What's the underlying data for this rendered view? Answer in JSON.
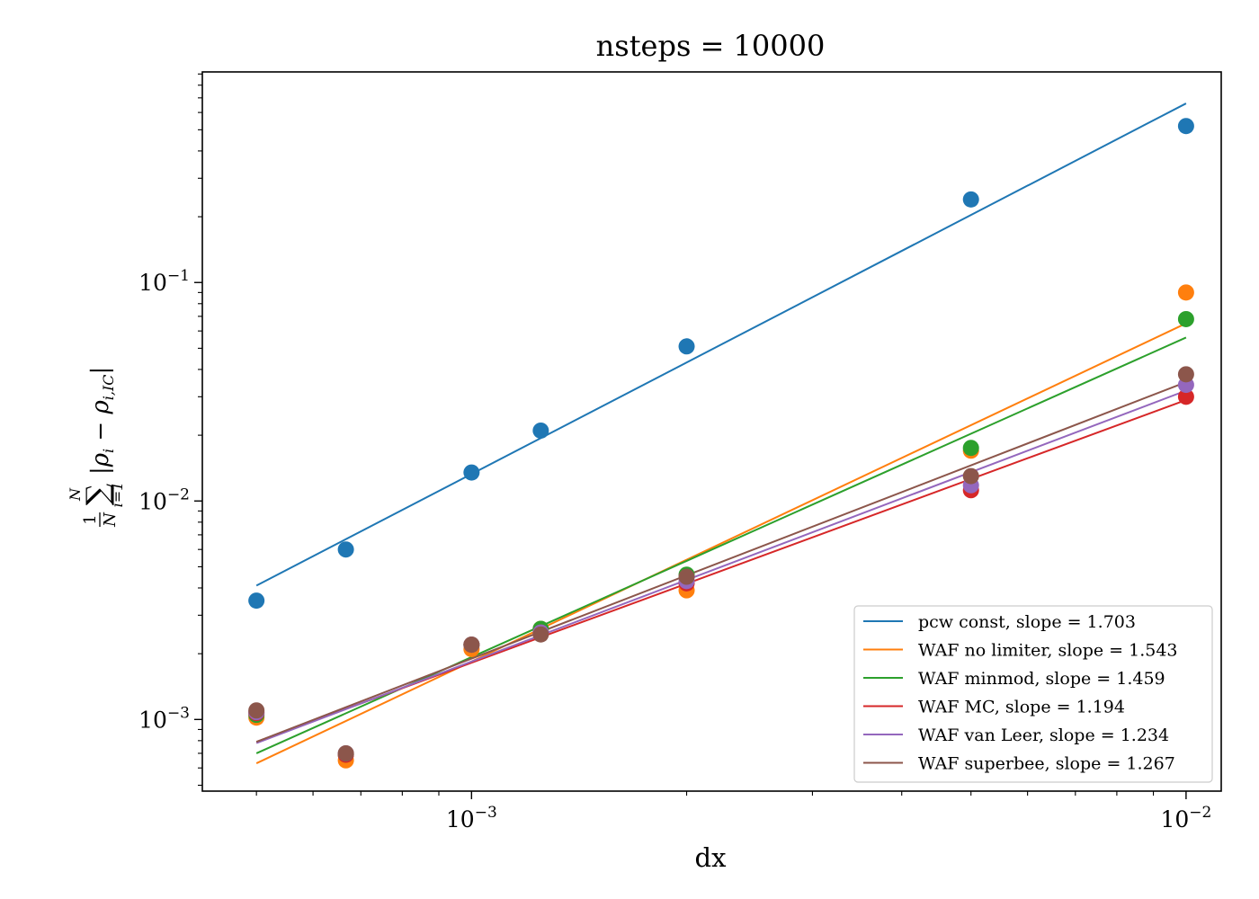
{
  "chart_data": {
    "type": "scatter",
    "title": "nsteps = 10000",
    "xlabel": "dx",
    "ylabel": {
      "frac_num": "1",
      "frac_den": "N",
      "sum_upper": "N",
      "sum_lower": "i=1",
      "body": "|ρ",
      "body_sub": "i",
      "minus": " − ρ",
      "minus_sub": "i,IC",
      "close": "|"
    },
    "xscale": "log",
    "yscale": "log",
    "xlim": [
      0.00042,
      0.0112
    ],
    "ylim": [
      0.00047,
      0.92
    ],
    "x_ticks": [
      {
        "value": 0.001,
        "base": "10",
        "exp": "−3"
      },
      {
        "value": 0.01,
        "base": "10",
        "exp": "−2"
      }
    ],
    "y_ticks": [
      {
        "value": 0.001,
        "base": "10",
        "exp": "−3"
      },
      {
        "value": 0.01,
        "base": "10",
        "exp": "−2"
      },
      {
        "value": 0.1,
        "base": "10",
        "exp": "−1"
      }
    ],
    "x": [
      0.0005,
      0.000667,
      0.001,
      0.00125,
      0.002,
      0.005,
      0.01
    ],
    "legend_position": "lower right",
    "series": [
      {
        "name": "pcw const, slope = 1.703",
        "color": "#1f77b4",
        "points": [
          0.0035,
          0.006,
          0.0135,
          0.021,
          0.051,
          0.24,
          0.52
        ],
        "fit": [
          0.0041,
          0.66
        ]
      },
      {
        "name": "WAF no limiter, slope = 1.543",
        "color": "#ff7f0e",
        "points": [
          0.00102,
          0.00065,
          0.0021,
          0.0026,
          0.0039,
          0.017,
          0.09
        ],
        "fit": [
          0.00063,
          0.065
        ]
      },
      {
        "name": "WAF minmod, slope = 1.459",
        "color": "#2ca02c",
        "points": [
          0.00105,
          0.00069,
          0.0022,
          0.0026,
          0.0046,
          0.0175,
          0.068
        ],
        "fit": [
          0.0007,
          0.056
        ]
      },
      {
        "name": "WAF MC, slope = 1.194",
        "color": "#d62728",
        "points": [
          0.00107,
          0.00069,
          0.0022,
          0.0025,
          0.0042,
          0.0112,
          0.03
        ],
        "fit": [
          0.00079,
          0.029
        ]
      },
      {
        "name": "WAF van Leer, slope = 1.234",
        "color": "#9467bd",
        "points": [
          0.00108,
          0.0007,
          0.0022,
          0.0025,
          0.0043,
          0.0118,
          0.034
        ],
        "fit": [
          0.00078,
          0.032
        ]
      },
      {
        "name": "WAF superbee, slope = 1.267",
        "color": "#8c564b",
        "points": [
          0.0011,
          0.0007,
          0.0022,
          0.00245,
          0.0045,
          0.013,
          0.038
        ],
        "fit": [
          0.00079,
          0.035
        ]
      }
    ]
  }
}
